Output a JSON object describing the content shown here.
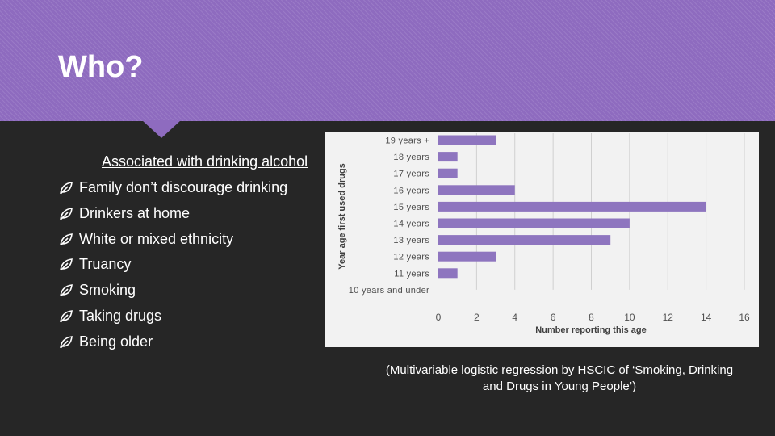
{
  "slide": {
    "title": "Who?"
  },
  "left": {
    "subheading": "Associated with drinking alcohol",
    "bullets": [
      "Family don’t discourage drinking",
      "Drinkers at home",
      "White or mixed ethnicity",
      "Truancy",
      "Smoking",
      "Taking drugs",
      "Being older"
    ]
  },
  "citation": "(Multivariable logistic regression by HSCIC of ‘Smoking, Drinking and Drugs in Young People’)",
  "colors": {
    "header": "#8e6bbf",
    "bar": "#8e75bf",
    "background": "#262626",
    "panel": "#f2f2f2"
  },
  "chart_data": {
    "type": "bar",
    "orientation": "horizontal",
    "categories": [
      "19 years +",
      "18 years",
      "17 years",
      "16 years",
      "15 years",
      "14 years",
      "13 years",
      "12 years",
      "11 years",
      "10 years and under"
    ],
    "values": [
      3,
      1,
      1,
      4,
      14,
      10,
      9,
      3,
      1,
      0
    ],
    "xlabel": "Number reporting this age",
    "ylabel": "Year age first used drugs",
    "xlim": [
      0,
      16
    ],
    "xticks": [
      0,
      2,
      4,
      6,
      8,
      10,
      12,
      14,
      16
    ],
    "grid": true,
    "legend": "none"
  }
}
